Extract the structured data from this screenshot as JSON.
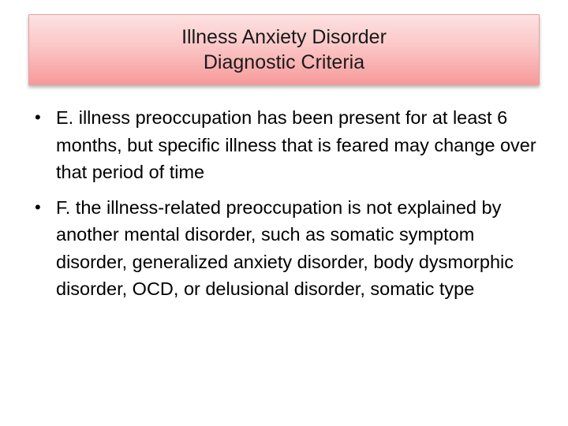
{
  "slide": {
    "title_line1": "Illness Anxiety Disorder",
    "title_line2": "Diagnostic Criteria",
    "bullets": [
      {
        "marker": "•",
        "text": "E. illness preoccupation has been present for at least 6 months, but specific illness that is feared may change over that period of time"
      },
      {
        "marker": "•",
        "text": "F. the illness-related preoccupation is not explained by another mental disorder, such as somatic symptom disorder, generalized anxiety disorder, body dysmorphic disorder, OCD, or delusional disorder, somatic type"
      }
    ]
  },
  "colors": {
    "title_gradient_top": "#fde2e2",
    "title_gradient_bottom": "#f79a9a",
    "title_border": "#e8a0a0",
    "text": "#000000"
  }
}
